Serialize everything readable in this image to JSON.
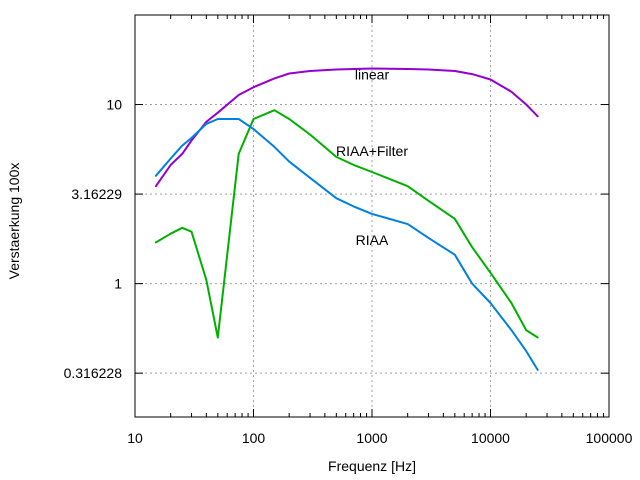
{
  "chart_data": {
    "type": "line",
    "xlabel": "Frequenz [Hz]",
    "ylabel": "Verstaerkung 100x",
    "xscale": "log",
    "yscale": "log",
    "xlim": [
      10,
      100000
    ],
    "ylim": [
      0.18,
      31.6228
    ],
    "grid": true,
    "x_ticks": [
      {
        "value": 10,
        "label": "10"
      },
      {
        "value": 100,
        "label": "100"
      },
      {
        "value": 1000,
        "label": "1000"
      },
      {
        "value": 10000,
        "label": "10000"
      },
      {
        "value": 100000,
        "label": "100000"
      }
    ],
    "y_ticks": [
      {
        "value": 0.316228,
        "label": "0.316228"
      },
      {
        "value": 1,
        "label": "1"
      },
      {
        "value": 3.16229,
        "label": "3.16229"
      },
      {
        "value": 10,
        "label": "10"
      }
    ],
    "series": [
      {
        "name": "linear",
        "color": "#9400d3",
        "label_at": [
          1000,
          14.7
        ],
        "points": [
          [
            15,
            3.5
          ],
          [
            20,
            4.6
          ],
          [
            25,
            5.3
          ],
          [
            30,
            6.3
          ],
          [
            40,
            8.0
          ],
          [
            50,
            9.0
          ],
          [
            75,
            11.3
          ],
          [
            100,
            12.5
          ],
          [
            150,
            14.0
          ],
          [
            200,
            14.9
          ],
          [
            300,
            15.4
          ],
          [
            500,
            15.7
          ],
          [
            1000,
            15.9
          ],
          [
            2000,
            15.8
          ],
          [
            3000,
            15.7
          ],
          [
            5000,
            15.4
          ],
          [
            7000,
            14.8
          ],
          [
            10000,
            13.8
          ],
          [
            15000,
            11.8
          ],
          [
            20000,
            10.0
          ],
          [
            25000,
            8.6
          ]
        ]
      },
      {
        "name": "RIAA+Filter",
        "color": "#00b000",
        "label_at": [
          1000,
          5.5
        ],
        "points": [
          [
            15,
            1.7
          ],
          [
            20,
            1.9
          ],
          [
            25,
            2.05
          ],
          [
            30,
            1.95
          ],
          [
            40,
            1.05
          ],
          [
            50,
            0.5
          ],
          [
            75,
            5.3
          ],
          [
            100,
            8.3
          ],
          [
            150,
            9.3
          ],
          [
            200,
            8.3
          ],
          [
            300,
            6.8
          ],
          [
            500,
            5.1
          ],
          [
            700,
            4.6
          ],
          [
            1000,
            4.2
          ],
          [
            2000,
            3.5
          ],
          [
            3000,
            2.9
          ],
          [
            5000,
            2.3
          ],
          [
            7000,
            1.6
          ],
          [
            10000,
            1.15
          ],
          [
            15000,
            0.78
          ],
          [
            20000,
            0.55
          ],
          [
            25000,
            0.5
          ]
        ]
      },
      {
        "name": "RIAA",
        "color": "#0080e0",
        "label_at": [
          1000,
          1.75
        ],
        "points": [
          [
            15,
            4.0
          ],
          [
            20,
            5.0
          ],
          [
            25,
            5.9
          ],
          [
            30,
            6.5
          ],
          [
            40,
            7.8
          ],
          [
            50,
            8.3
          ],
          [
            75,
            8.3
          ],
          [
            100,
            7.3
          ],
          [
            150,
            5.8
          ],
          [
            200,
            4.8
          ],
          [
            300,
            3.9
          ],
          [
            500,
            3.0
          ],
          [
            700,
            2.7
          ],
          [
            1000,
            2.45
          ],
          [
            2000,
            2.15
          ],
          [
            3000,
            1.8
          ],
          [
            5000,
            1.45
          ],
          [
            7000,
            1.0
          ],
          [
            10000,
            0.78
          ],
          [
            15000,
            0.55
          ],
          [
            20000,
            0.42
          ],
          [
            25000,
            0.33
          ]
        ]
      }
    ]
  }
}
